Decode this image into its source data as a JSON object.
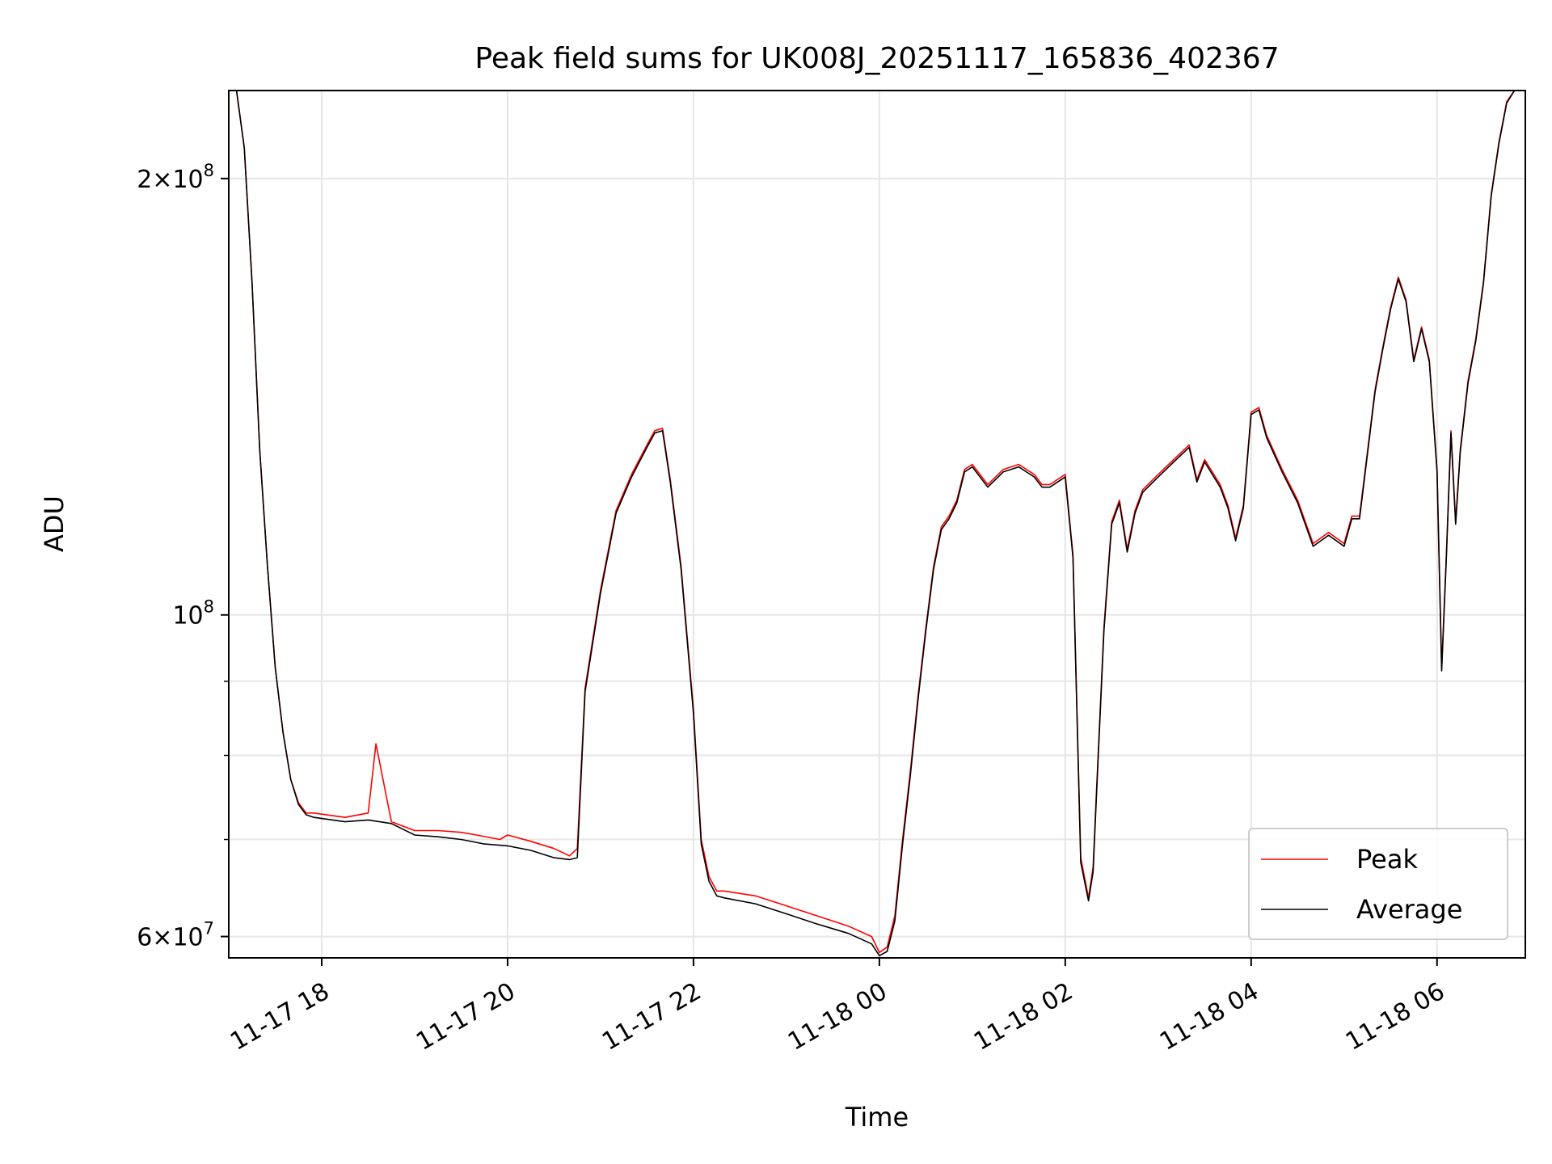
{
  "chart_data": {
    "type": "line",
    "title": "Peak field sums for UK008J_20251117_165836_402367",
    "xlabel": "Time",
    "ylabel": "ADU",
    "x_scale": "time",
    "y_scale": "log",
    "x_range": [
      "2025-11-17 17:00",
      "2025-11-18 06:57"
    ],
    "y_range": [
      58000000,
      230000000
    ],
    "x_ticks": [
      {
        "value": "2025-11-17 18:00",
        "label": "11-17 18"
      },
      {
        "value": "2025-11-17 20:00",
        "label": "11-17 20"
      },
      {
        "value": "2025-11-17 22:00",
        "label": "11-17 22"
      },
      {
        "value": "2025-11-18 00:00",
        "label": "11-18 00"
      },
      {
        "value": "2025-11-18 02:00",
        "label": "11-18 02"
      },
      {
        "value": "2025-11-18 04:00",
        "label": "11-18 04"
      },
      {
        "value": "2025-11-18 06:00",
        "label": "11-18 06"
      }
    ],
    "y_major_ticks": [
      {
        "value": 60000000,
        "mantissa": "6",
        "exp": "7"
      },
      {
        "value": 100000000,
        "mantissa": "",
        "exp": "8"
      },
      {
        "value": 200000000,
        "mantissa": "2",
        "exp": "8"
      }
    ],
    "y_minor_ticks": [
      70000000,
      80000000,
      90000000
    ],
    "grid": true,
    "legend_position": "lower-right",
    "series": [
      {
        "name": "Peak",
        "color": "#ff0000",
        "x": [
          "2025-11-17 17:00",
          "2025-11-17 17:05",
          "2025-11-17 17:10",
          "2025-11-17 17:15",
          "2025-11-17 17:20",
          "2025-11-17 17:25",
          "2025-11-17 17:30",
          "2025-11-17 17:35",
          "2025-11-17 17:40",
          "2025-11-17 17:45",
          "2025-11-17 17:50",
          "2025-11-17 17:55",
          "2025-11-17 18:15",
          "2025-11-17 18:30",
          "2025-11-17 18:35",
          "2025-11-17 18:45",
          "2025-11-17 19:00",
          "2025-11-17 19:15",
          "2025-11-17 19:30",
          "2025-11-17 19:40",
          "2025-11-17 19:55",
          "2025-11-17 20:00",
          "2025-11-17 20:15",
          "2025-11-17 20:30",
          "2025-11-17 20:40",
          "2025-11-17 20:45",
          "2025-11-17 20:50",
          "2025-11-17 21:00",
          "2025-11-17 21:10",
          "2025-11-17 21:20",
          "2025-11-17 21:30",
          "2025-11-17 21:35",
          "2025-11-17 21:40",
          "2025-11-17 21:45",
          "2025-11-17 21:52",
          "2025-11-17 22:00",
          "2025-11-17 22:05",
          "2025-11-17 22:10",
          "2025-11-17 22:15",
          "2025-11-17 22:20",
          "2025-11-17 22:40",
          "2025-11-17 23:00",
          "2025-11-17 23:20",
          "2025-11-17 23:40",
          "2025-11-17 23:55",
          "2025-11-18 00:00",
          "2025-11-18 00:05",
          "2025-11-18 00:10",
          "2025-11-18 00:15",
          "2025-11-18 00:20",
          "2025-11-18 00:25",
          "2025-11-18 00:30",
          "2025-11-18 00:35",
          "2025-11-18 00:40",
          "2025-11-18 00:45",
          "2025-11-18 00:50",
          "2025-11-18 00:55",
          "2025-11-18 01:00",
          "2025-11-18 01:10",
          "2025-11-18 01:20",
          "2025-11-18 01:30",
          "2025-11-18 01:40",
          "2025-11-18 01:45",
          "2025-11-18 01:50",
          "2025-11-18 02:00",
          "2025-11-18 02:05",
          "2025-11-18 02:10",
          "2025-11-18 02:15",
          "2025-11-18 02:18",
          "2025-11-18 02:20",
          "2025-11-18 02:25",
          "2025-11-18 02:30",
          "2025-11-18 02:35",
          "2025-11-18 02:40",
          "2025-11-18 02:45",
          "2025-11-18 02:50",
          "2025-11-18 03:00",
          "2025-11-18 03:10",
          "2025-11-18 03:20",
          "2025-11-18 03:25",
          "2025-11-18 03:30",
          "2025-11-18 03:40",
          "2025-11-18 03:45",
          "2025-11-18 03:50",
          "2025-11-18 03:55",
          "2025-11-18 04:00",
          "2025-11-18 04:05",
          "2025-11-18 04:10",
          "2025-11-18 04:20",
          "2025-11-18 04:30",
          "2025-11-18 04:40",
          "2025-11-18 04:50",
          "2025-11-18 05:00",
          "2025-11-18 05:05",
          "2025-11-18 05:10",
          "2025-11-18 05:20",
          "2025-11-18 05:25",
          "2025-11-18 05:30",
          "2025-11-18 05:35",
          "2025-11-18 05:40",
          "2025-11-18 05:45",
          "2025-11-18 05:50",
          "2025-11-18 05:55",
          "2025-11-18 06:00",
          "2025-11-18 06:03",
          "2025-11-18 06:06",
          "2025-11-18 06:09",
          "2025-11-18 06:12",
          "2025-11-18 06:15",
          "2025-11-18 06:20",
          "2025-11-18 06:25",
          "2025-11-18 06:30",
          "2025-11-18 06:35",
          "2025-11-18 06:40",
          "2025-11-18 06:45",
          "2025-11-18 06:50",
          "2025-11-18 06:57"
        ],
        "values": [
          230000000,
          230000000,
          210000000,
          170000000,
          130000000,
          108000000,
          92000000,
          83000000,
          77000000,
          74200000,
          73000000,
          73000000,
          72500000,
          73000000,
          81500000,
          72000000,
          71000000,
          71000000,
          70800000,
          70500000,
          70000000,
          70500000,
          69800000,
          69000000,
          68200000,
          69000000,
          89000000,
          104000000,
          118000000,
          125000000,
          131000000,
          134000000,
          134500000,
          124000000,
          108000000,
          86000000,
          70000000,
          66000000,
          64500000,
          64500000,
          64000000,
          63000000,
          62000000,
          61000000,
          60000000,
          58500000,
          59000000,
          62000000,
          70000000,
          78000000,
          88000000,
          98000000,
          108000000,
          115000000,
          117000000,
          120000000,
          126000000,
          127000000,
          123000000,
          126000000,
          127000000,
          125000000,
          123000000,
          123000000,
          125000000,
          110000000,
          68000000,
          63800000,
          67000000,
          75000000,
          98000000,
          116000000,
          120000000,
          111000000,
          118000000,
          122000000,
          125000000,
          128000000,
          131000000,
          124000000,
          128000000,
          123000000,
          119000000,
          113000000,
          119000000,
          138000000,
          139000000,
          133000000,
          126000000,
          120000000,
          112000000,
          114000000,
          112000000,
          117000000,
          117000000,
          143000000,
          153000000,
          163000000,
          171000000,
          165000000,
          150000000,
          158000000,
          150000000,
          126000000,
          92000000,
          110000000,
          134000000,
          116000000,
          130000000,
          145000000,
          155000000,
          170000000,
          195000000,
          212000000,
          226000000,
          230000000,
          230000000
        ]
      },
      {
        "name": "Average",
        "color": "#000000",
        "x": [
          "2025-11-17 17:00",
          "2025-11-17 17:05",
          "2025-11-17 17:10",
          "2025-11-17 17:15",
          "2025-11-17 17:20",
          "2025-11-17 17:25",
          "2025-11-17 17:30",
          "2025-11-17 17:35",
          "2025-11-17 17:40",
          "2025-11-17 17:45",
          "2025-11-17 17:50",
          "2025-11-17 17:55",
          "2025-11-17 18:15",
          "2025-11-17 18:30",
          "2025-11-17 18:45",
          "2025-11-17 19:00",
          "2025-11-17 19:15",
          "2025-11-17 19:30",
          "2025-11-17 19:45",
          "2025-11-17 20:00",
          "2025-11-17 20:15",
          "2025-11-17 20:30",
          "2025-11-17 20:40",
          "2025-11-17 20:45",
          "2025-11-17 20:50",
          "2025-11-17 21:00",
          "2025-11-17 21:10",
          "2025-11-17 21:20",
          "2025-11-17 21:30",
          "2025-11-17 21:35",
          "2025-11-17 21:40",
          "2025-11-17 21:45",
          "2025-11-17 21:52",
          "2025-11-17 22:00",
          "2025-11-17 22:05",
          "2025-11-17 22:10",
          "2025-11-17 22:15",
          "2025-11-17 22:20",
          "2025-11-17 22:40",
          "2025-11-17 23:00",
          "2025-11-17 23:20",
          "2025-11-17 23:40",
          "2025-11-17 23:55",
          "2025-11-18 00:00",
          "2025-11-18 00:05",
          "2025-11-18 00:10",
          "2025-11-18 00:15",
          "2025-11-18 00:20",
          "2025-11-18 00:25",
          "2025-11-18 00:30",
          "2025-11-18 00:35",
          "2025-11-18 00:40",
          "2025-11-18 00:45",
          "2025-11-18 00:50",
          "2025-11-18 00:55",
          "2025-11-18 01:00",
          "2025-11-18 01:10",
          "2025-11-18 01:20",
          "2025-11-18 01:30",
          "2025-11-18 01:40",
          "2025-11-18 01:45",
          "2025-11-18 01:50",
          "2025-11-18 02:00",
          "2025-11-18 02:05",
          "2025-11-18 02:10",
          "2025-11-18 02:15",
          "2025-11-18 02:18",
          "2025-11-18 02:20",
          "2025-11-18 02:25",
          "2025-11-18 02:30",
          "2025-11-18 02:35",
          "2025-11-18 02:40",
          "2025-11-18 02:45",
          "2025-11-18 02:50",
          "2025-11-18 03:00",
          "2025-11-18 03:10",
          "2025-11-18 03:20",
          "2025-11-18 03:25",
          "2025-11-18 03:30",
          "2025-11-18 03:40",
          "2025-11-18 03:45",
          "2025-11-18 03:50",
          "2025-11-18 03:55",
          "2025-11-18 04:00",
          "2025-11-18 04:05",
          "2025-11-18 04:10",
          "2025-11-18 04:20",
          "2025-11-18 04:30",
          "2025-11-18 04:40",
          "2025-11-18 04:50",
          "2025-11-18 05:00",
          "2025-11-18 05:05",
          "2025-11-18 05:10",
          "2025-11-18 05:20",
          "2025-11-18 05:25",
          "2025-11-18 05:30",
          "2025-11-18 05:35",
          "2025-11-18 05:40",
          "2025-11-18 05:45",
          "2025-11-18 05:50",
          "2025-11-18 05:55",
          "2025-11-18 06:00",
          "2025-11-18 06:03",
          "2025-11-18 06:06",
          "2025-11-18 06:09",
          "2025-11-18 06:12",
          "2025-11-18 06:15",
          "2025-11-18 06:20",
          "2025-11-18 06:25",
          "2025-11-18 06:30",
          "2025-11-18 06:35",
          "2025-11-18 06:40",
          "2025-11-18 06:45",
          "2025-11-18 06:50",
          "2025-11-18 06:57"
        ],
        "values": [
          230000000,
          230000000,
          210000000,
          170000000,
          130000000,
          108000000,
          92000000,
          83000000,
          77000000,
          74000000,
          72800000,
          72500000,
          72000000,
          72200000,
          71800000,
          70500000,
          70300000,
          70000000,
          69500000,
          69300000,
          68800000,
          68000000,
          67800000,
          68000000,
          88500000,
          103500000,
          117500000,
          124500000,
          130500000,
          133500000,
          134000000,
          123500000,
          107500000,
          85500000,
          69500000,
          65500000,
          64000000,
          63800000,
          63200000,
          62200000,
          61200000,
          60300000,
          59300000,
          58200000,
          58600000,
          61500000,
          69500000,
          77500000,
          87500000,
          97500000,
          107500000,
          114500000,
          116500000,
          119500000,
          125500000,
          126500000,
          122500000,
          125500000,
          126500000,
          124500000,
          122500000,
          122500000,
          124500000,
          109500000,
          67500000,
          63500000,
          66500000,
          74500000,
          97500000,
          115500000,
          119500000,
          110500000,
          117500000,
          121500000,
          124500000,
          127500000,
          130500000,
          123500000,
          127500000,
          122500000,
          118500000,
          112500000,
          118500000,
          137500000,
          138500000,
          132500000,
          125500000,
          119500000,
          111500000,
          113500000,
          111500000,
          116500000,
          116500000,
          142500000,
          152500000,
          162500000,
          170500000,
          164500000,
          149500000,
          157500000,
          149500000,
          125500000,
          91500000,
          109500000,
          133500000,
          115500000,
          129500000,
          144500000,
          154500000,
          169500000,
          194500000,
          211500000,
          225500000,
          230000000,
          230000000
        ]
      }
    ]
  }
}
